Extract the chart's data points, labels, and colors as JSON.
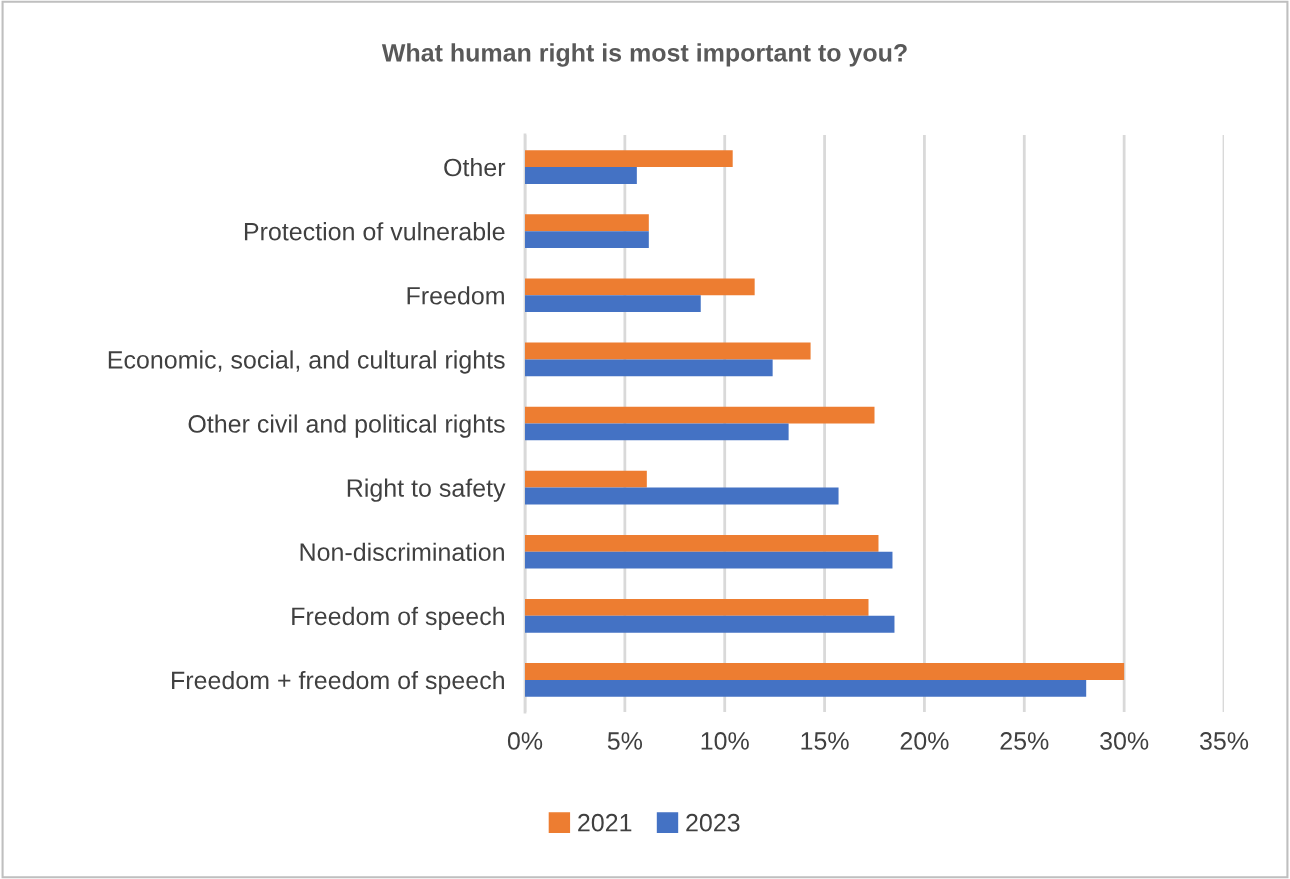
{
  "chart_data": {
    "type": "bar",
    "orientation": "horizontal",
    "title": "What human right is most important to you?",
    "categories": [
      "Other",
      "Protection of vulnerable",
      "Freedom",
      "Economic, social, and cultural rights",
      "Other civil and political rights",
      "Right to safety",
      "Non-discrimination",
      "Freedom of speech",
      "Freedom + freedom of speech"
    ],
    "series": [
      {
        "name": "2021",
        "color": "#ed7d31",
        "values": [
          10.4,
          6.2,
          11.5,
          14.3,
          17.5,
          6.1,
          17.7,
          17.2,
          30.0
        ]
      },
      {
        "name": "2023",
        "color": "#4472c4",
        "values": [
          5.6,
          6.2,
          8.8,
          12.4,
          13.2,
          15.7,
          18.4,
          18.5,
          28.1
        ]
      }
    ],
    "xlim": [
      0,
      35
    ],
    "xticks": [
      {
        "value": 0,
        "label": "0%"
      },
      {
        "value": 5,
        "label": "5%"
      },
      {
        "value": 10,
        "label": "10%"
      },
      {
        "value": 15,
        "label": "15%"
      },
      {
        "value": 20,
        "label": "20%"
      },
      {
        "value": 25,
        "label": "25%"
      },
      {
        "value": 30,
        "label": "30%"
      },
      {
        "value": 35,
        "label": "35%"
      }
    ],
    "grid": "x",
    "legend": "bottom"
  }
}
